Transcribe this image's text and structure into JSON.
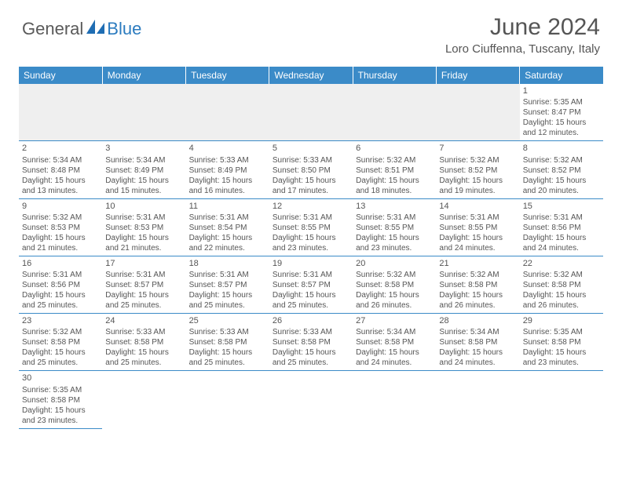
{
  "brand": {
    "part1": "General",
    "part2": "Blue"
  },
  "title": "June 2024",
  "location": "Loro Ciuffenna, Tuscany, Italy",
  "colors": {
    "header_bg": "#3b8bc8",
    "header_text": "#ffffff",
    "grid_line": "#3b8bc8",
    "text": "#555555",
    "blank_row_bg": "#efefef"
  },
  "typography": {
    "title_fontsize": 30,
    "location_fontsize": 15,
    "weekday_fontsize": 12,
    "cell_fontsize": 10
  },
  "weekdays": [
    "Sunday",
    "Monday",
    "Tuesday",
    "Wednesday",
    "Thursday",
    "Friday",
    "Saturday"
  ],
  "weeks": [
    [
      null,
      null,
      null,
      null,
      null,
      null,
      {
        "n": "1",
        "sr": "Sunrise: 5:35 AM",
        "ss": "Sunset: 8:47 PM",
        "d1": "Daylight: 15 hours",
        "d2": "and 12 minutes."
      }
    ],
    [
      {
        "n": "2",
        "sr": "Sunrise: 5:34 AM",
        "ss": "Sunset: 8:48 PM",
        "d1": "Daylight: 15 hours",
        "d2": "and 13 minutes."
      },
      {
        "n": "3",
        "sr": "Sunrise: 5:34 AM",
        "ss": "Sunset: 8:49 PM",
        "d1": "Daylight: 15 hours",
        "d2": "and 15 minutes."
      },
      {
        "n": "4",
        "sr": "Sunrise: 5:33 AM",
        "ss": "Sunset: 8:49 PM",
        "d1": "Daylight: 15 hours",
        "d2": "and 16 minutes."
      },
      {
        "n": "5",
        "sr": "Sunrise: 5:33 AM",
        "ss": "Sunset: 8:50 PM",
        "d1": "Daylight: 15 hours",
        "d2": "and 17 minutes."
      },
      {
        "n": "6",
        "sr": "Sunrise: 5:32 AM",
        "ss": "Sunset: 8:51 PM",
        "d1": "Daylight: 15 hours",
        "d2": "and 18 minutes."
      },
      {
        "n": "7",
        "sr": "Sunrise: 5:32 AM",
        "ss": "Sunset: 8:52 PM",
        "d1": "Daylight: 15 hours",
        "d2": "and 19 minutes."
      },
      {
        "n": "8",
        "sr": "Sunrise: 5:32 AM",
        "ss": "Sunset: 8:52 PM",
        "d1": "Daylight: 15 hours",
        "d2": "and 20 minutes."
      }
    ],
    [
      {
        "n": "9",
        "sr": "Sunrise: 5:32 AM",
        "ss": "Sunset: 8:53 PM",
        "d1": "Daylight: 15 hours",
        "d2": "and 21 minutes."
      },
      {
        "n": "10",
        "sr": "Sunrise: 5:31 AM",
        "ss": "Sunset: 8:53 PM",
        "d1": "Daylight: 15 hours",
        "d2": "and 21 minutes."
      },
      {
        "n": "11",
        "sr": "Sunrise: 5:31 AM",
        "ss": "Sunset: 8:54 PM",
        "d1": "Daylight: 15 hours",
        "d2": "and 22 minutes."
      },
      {
        "n": "12",
        "sr": "Sunrise: 5:31 AM",
        "ss": "Sunset: 8:55 PM",
        "d1": "Daylight: 15 hours",
        "d2": "and 23 minutes."
      },
      {
        "n": "13",
        "sr": "Sunrise: 5:31 AM",
        "ss": "Sunset: 8:55 PM",
        "d1": "Daylight: 15 hours",
        "d2": "and 23 minutes."
      },
      {
        "n": "14",
        "sr": "Sunrise: 5:31 AM",
        "ss": "Sunset: 8:55 PM",
        "d1": "Daylight: 15 hours",
        "d2": "and 24 minutes."
      },
      {
        "n": "15",
        "sr": "Sunrise: 5:31 AM",
        "ss": "Sunset: 8:56 PM",
        "d1": "Daylight: 15 hours",
        "d2": "and 24 minutes."
      }
    ],
    [
      {
        "n": "16",
        "sr": "Sunrise: 5:31 AM",
        "ss": "Sunset: 8:56 PM",
        "d1": "Daylight: 15 hours",
        "d2": "and 25 minutes."
      },
      {
        "n": "17",
        "sr": "Sunrise: 5:31 AM",
        "ss": "Sunset: 8:57 PM",
        "d1": "Daylight: 15 hours",
        "d2": "and 25 minutes."
      },
      {
        "n": "18",
        "sr": "Sunrise: 5:31 AM",
        "ss": "Sunset: 8:57 PM",
        "d1": "Daylight: 15 hours",
        "d2": "and 25 minutes."
      },
      {
        "n": "19",
        "sr": "Sunrise: 5:31 AM",
        "ss": "Sunset: 8:57 PM",
        "d1": "Daylight: 15 hours",
        "d2": "and 25 minutes."
      },
      {
        "n": "20",
        "sr": "Sunrise: 5:32 AM",
        "ss": "Sunset: 8:58 PM",
        "d1": "Daylight: 15 hours",
        "d2": "and 26 minutes."
      },
      {
        "n": "21",
        "sr": "Sunrise: 5:32 AM",
        "ss": "Sunset: 8:58 PM",
        "d1": "Daylight: 15 hours",
        "d2": "and 26 minutes."
      },
      {
        "n": "22",
        "sr": "Sunrise: 5:32 AM",
        "ss": "Sunset: 8:58 PM",
        "d1": "Daylight: 15 hours",
        "d2": "and 26 minutes."
      }
    ],
    [
      {
        "n": "23",
        "sr": "Sunrise: 5:32 AM",
        "ss": "Sunset: 8:58 PM",
        "d1": "Daylight: 15 hours",
        "d2": "and 25 minutes."
      },
      {
        "n": "24",
        "sr": "Sunrise: 5:33 AM",
        "ss": "Sunset: 8:58 PM",
        "d1": "Daylight: 15 hours",
        "d2": "and 25 minutes."
      },
      {
        "n": "25",
        "sr": "Sunrise: 5:33 AM",
        "ss": "Sunset: 8:58 PM",
        "d1": "Daylight: 15 hours",
        "d2": "and 25 minutes."
      },
      {
        "n": "26",
        "sr": "Sunrise: 5:33 AM",
        "ss": "Sunset: 8:58 PM",
        "d1": "Daylight: 15 hours",
        "d2": "and 25 minutes."
      },
      {
        "n": "27",
        "sr": "Sunrise: 5:34 AM",
        "ss": "Sunset: 8:58 PM",
        "d1": "Daylight: 15 hours",
        "d2": "and 24 minutes."
      },
      {
        "n": "28",
        "sr": "Sunrise: 5:34 AM",
        "ss": "Sunset: 8:58 PM",
        "d1": "Daylight: 15 hours",
        "d2": "and 24 minutes."
      },
      {
        "n": "29",
        "sr": "Sunrise: 5:35 AM",
        "ss": "Sunset: 8:58 PM",
        "d1": "Daylight: 15 hours",
        "d2": "and 23 minutes."
      }
    ],
    [
      {
        "n": "30",
        "sr": "Sunrise: 5:35 AM",
        "ss": "Sunset: 8:58 PM",
        "d1": "Daylight: 15 hours",
        "d2": "and 23 minutes."
      },
      null,
      null,
      null,
      null,
      null,
      null
    ]
  ]
}
